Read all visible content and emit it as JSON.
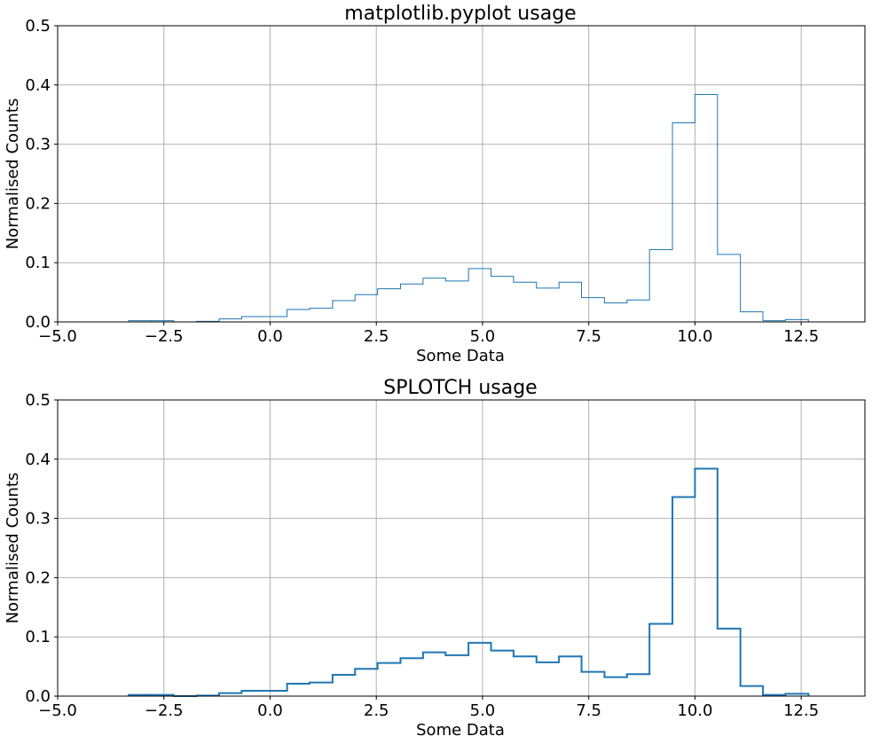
{
  "chart_data": [
    {
      "type": "histogram",
      "title": "matplotlib.pyplot usage",
      "x_label": "Some Data",
      "y_label": "Normalised Counts",
      "color": "#1f77b4",
      "grid": true,
      "bins": [
        -3.33,
        -2.8,
        -2.27,
        -1.73,
        -1.2,
        -0.67,
        -0.13,
        0.4,
        0.93,
        1.47,
        2.0,
        2.53,
        3.07,
        3.6,
        4.13,
        4.67,
        5.2,
        5.73,
        6.27,
        6.8,
        7.33,
        7.87,
        8.4,
        8.93,
        9.47,
        10.0,
        10.53,
        11.07,
        11.6,
        12.13,
        12.67
      ],
      "values": [
        0.002,
        0.002,
        0,
        0.001,
        0.005,
        0.009,
        0.009,
        0.021,
        0.023,
        0.036,
        0.046,
        0.056,
        0.064,
        0.074,
        0.069,
        0.09,
        0.077,
        0.067,
        0.057,
        0.067,
        0.041,
        0.032,
        0.037,
        0.122,
        0.336,
        0.384,
        0.114,
        0.017,
        0.002,
        0.004
      ],
      "xlim": [
        -5,
        14
      ],
      "ylim": [
        0,
        0.5
      ],
      "xticks": [
        {
          "value": -5,
          "label": "−5.0"
        },
        {
          "value": -2.5,
          "label": "−2.5"
        },
        {
          "value": 0,
          "label": "0.0"
        },
        2.5,
        {
          "value": 5,
          "label": "5.0"
        },
        7.5,
        {
          "value": 10,
          "label": "10.0"
        },
        12.5
      ],
      "yticks": [
        {
          "value": 0,
          "label": "0.0"
        },
        0.1,
        0.2,
        0.3,
        0.4,
        0.5
      ]
    },
    {
      "type": "histogram",
      "title": "SPLOTCH usage",
      "x_label": "Some Data",
      "y_label": "Normalised Counts",
      "color": "#1f77b4",
      "grid": true,
      "bins": [
        -3.33,
        -2.8,
        -2.27,
        -1.73,
        -1.2,
        -0.67,
        -0.13,
        0.4,
        0.93,
        1.47,
        2.0,
        2.53,
        3.07,
        3.6,
        4.13,
        4.67,
        5.2,
        5.73,
        6.27,
        6.8,
        7.33,
        7.87,
        8.4,
        8.93,
        9.47,
        10.0,
        10.53,
        11.07,
        11.6,
        12.13,
        12.67
      ],
      "values": [
        0.002,
        0.002,
        0,
        0.001,
        0.005,
        0.009,
        0.009,
        0.021,
        0.023,
        0.036,
        0.046,
        0.056,
        0.064,
        0.074,
        0.069,
        0.09,
        0.077,
        0.067,
        0.057,
        0.067,
        0.041,
        0.032,
        0.037,
        0.122,
        0.336,
        0.384,
        0.114,
        0.017,
        0.002,
        0.004
      ],
      "xlim": [
        -5,
        14
      ],
      "ylim": [
        0,
        0.5
      ],
      "xticks": [
        {
          "value": -5,
          "label": "−5.0"
        },
        {
          "value": -2.5,
          "label": "−2.5"
        },
        {
          "value": 0,
          "label": "0.0"
        },
        2.5,
        {
          "value": 5,
          "label": "5.0"
        },
        7.5,
        {
          "value": 10,
          "label": "10.0"
        },
        12.5
      ],
      "yticks": [
        {
          "value": 0,
          "label": "0.0"
        },
        0.1,
        0.2,
        0.3,
        0.4,
        0.5
      ]
    }
  ]
}
